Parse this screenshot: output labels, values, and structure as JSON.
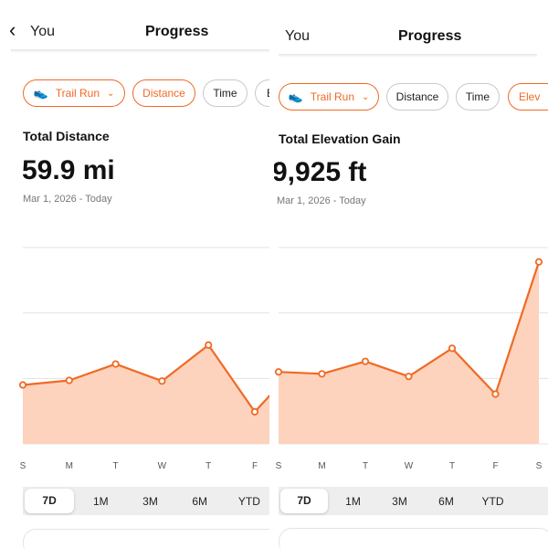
{
  "accent": "#f06a25",
  "fill": "#fdd3bd",
  "panels": [
    {
      "header": {
        "back_label": "You",
        "title": "Progress"
      },
      "chips": [
        {
          "label": "Trail Run",
          "icon": "shoe-icon",
          "active": true
        },
        {
          "label": "Distance",
          "active": true
        },
        {
          "label": "Time",
          "active": false
        },
        {
          "label": "E",
          "active": false
        }
      ],
      "metric": {
        "label": "Total Distance",
        "value": "59.9 mi",
        "range": "Mar 1, 2026 - Today"
      },
      "periods": [
        "7D",
        "1M",
        "3M",
        "6M",
        "YTD"
      ],
      "active_period": "7D",
      "chart_data": {
        "type": "area",
        "x": [
          "S",
          "M",
          "T",
          "W",
          "T",
          "F"
        ],
        "values": [
          0.9,
          0.97,
          1.22,
          0.96,
          1.51,
          0.49
        ],
        "next_value": 1.26,
        "ylim": [
          0,
          3
        ],
        "units": "relative (gridline units)",
        "grid": true
      }
    },
    {
      "header": {
        "back_label": "You",
        "title": "Progress"
      },
      "chips": [
        {
          "label": "Trail Run",
          "icon": "shoe-icon",
          "active": true
        },
        {
          "label": "Distance",
          "active": false
        },
        {
          "label": "Time",
          "active": false
        },
        {
          "label": "Elev",
          "active": true
        }
      ],
      "metric": {
        "label": "Total Elevation Gain",
        "value": "9,925 ft",
        "range": "Mar 1, 2026 - Today"
      },
      "periods": [
        "7D",
        "1M",
        "3M",
        "6M",
        "YTD"
      ],
      "active_period": "7D",
      "chart_data": {
        "type": "area",
        "x": [
          "S",
          "M",
          "T",
          "W",
          "T",
          "F",
          "S"
        ],
        "values": [
          1.1,
          1.07,
          1.26,
          1.03,
          1.46,
          0.76,
          2.78
        ],
        "ylim": [
          0,
          3
        ],
        "units": "relative (gridline units)",
        "grid": true
      }
    }
  ]
}
